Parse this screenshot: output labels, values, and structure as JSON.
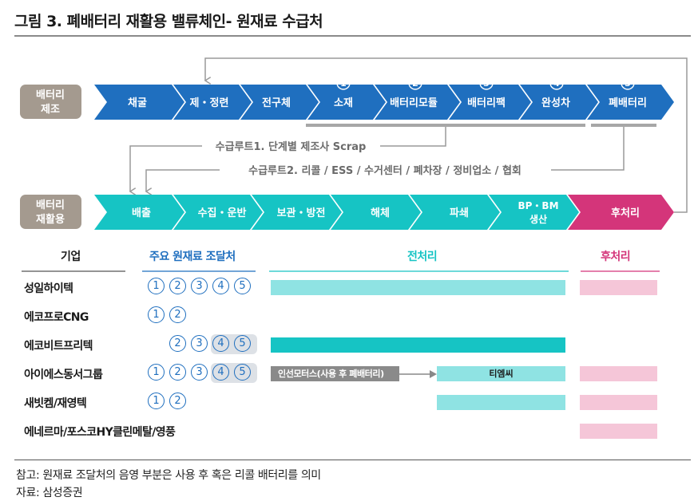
{
  "title": "그림 3. 폐배터리 재활용 밸류체인- 원재료 수급처",
  "colors": {
    "blue": "#1f6fbf",
    "teal": "#16c4c4",
    "pink": "#d4357a",
    "side_label": "#a49a8f"
  },
  "top_row": {
    "label_line1": "배터리",
    "label_line2": "제조",
    "stages": [
      {
        "label": "채굴",
        "num": ""
      },
      {
        "label": "제・정련",
        "num": ""
      },
      {
        "label": "전구체",
        "num": ""
      },
      {
        "label": "소재",
        "num": "1"
      },
      {
        "label": "배터리모듈",
        "num": "2"
      },
      {
        "label": "배터리팩",
        "num": "3"
      },
      {
        "label": "완성차",
        "num": "4"
      },
      {
        "label": "폐배터리",
        "num": "5"
      }
    ]
  },
  "routes": {
    "route1": "수급루트1. 단계별 제조사 Scrap",
    "route2": "수급루트2. 리콜 / ESS / 수거센터 / 폐차장 / 정비업소 / 협회"
  },
  "bottom_row": {
    "label_line1": "배터리",
    "label_line2": "재활용",
    "stages": [
      {
        "label": "배출",
        "label2": ""
      },
      {
        "label": "수집・운반",
        "label2": ""
      },
      {
        "label": "보관・방전",
        "label2": ""
      },
      {
        "label": "해체",
        "label2": ""
      },
      {
        "label": "파쇄",
        "label2": ""
      },
      {
        "label": "BP・BM",
        "label2": "생산"
      },
      {
        "label": "후처리",
        "label2": ""
      }
    ]
  },
  "table": {
    "col_company": "기업",
    "col_source": "주요 원재료 조달처",
    "col_pre": "전처리",
    "col_post": "후처리",
    "rows": [
      {
        "company": "성일하이텍",
        "circles": [
          "1",
          "2",
          "3",
          "4",
          "5"
        ]
      },
      {
        "company": "에코프로CNG",
        "circles": [
          "1",
          "2"
        ]
      },
      {
        "company": "에코비트프리텍",
        "circles": [
          "2",
          "3",
          "4",
          "5"
        ]
      },
      {
        "company": "아이에스동서그룹",
        "circles": [
          "1",
          "2",
          "3",
          "4",
          "5"
        ],
        "gray_label": "인선모터스(사용 후 폐배터리)",
        "cyan_label": "티엠씨"
      },
      {
        "company": "새빗켐/재영텍",
        "circles": [
          "1",
          "2"
        ]
      },
      {
        "company": "에네르마/포스코HY클린메탈/영풍",
        "circles": []
      }
    ]
  },
  "notes": {
    "note": "참고: 원재료 조달처의 음영 부분은 사용 후 혹은 리콜 배터리를 의미",
    "source": "자료: 삼성증권"
  }
}
